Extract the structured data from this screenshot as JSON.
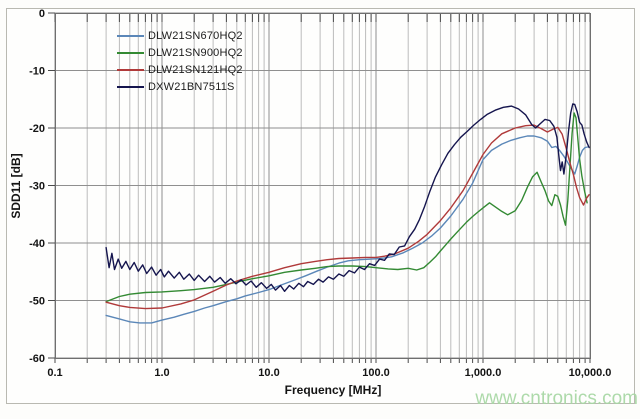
{
  "figure": {
    "watermark": "www.cntronics.com",
    "watermark_color": "#a7d7a3"
  },
  "chart_data": {
    "type": "line",
    "title": "",
    "xlabel": "Frequency [MHz]",
    "ylabel": "SDD11 [dB]",
    "x_scale": "log",
    "xlim": [
      0.1,
      10000
    ],
    "ylim": [
      -60,
      0
    ],
    "x_ticks": [
      "0.1",
      "1.0",
      "10.0",
      "100.0",
      "1,000.0",
      "10,000.0"
    ],
    "y_ticks": [
      "0",
      "-10",
      "-20",
      "-30",
      "-40",
      "-50",
      "-60"
    ],
    "grid": true,
    "legend_position": "upper-left-inside",
    "series": [
      {
        "name": "DLW21SN670HQ2",
        "color": "#5b87b8",
        "points": [
          [
            0.3,
            -52.6
          ],
          [
            0.4,
            -53.2
          ],
          [
            0.5,
            -53.7
          ],
          [
            0.62,
            -53.9
          ],
          [
            0.8,
            -53.9
          ],
          [
            1,
            -53.4
          ],
          [
            1.3,
            -52.9
          ],
          [
            1.6,
            -52.4
          ],
          [
            2,
            -51.9
          ],
          [
            2.5,
            -51.3
          ],
          [
            3,
            -50.9
          ],
          [
            4,
            -50.2
          ],
          [
            5,
            -49.7
          ],
          [
            6,
            -49.2
          ],
          [
            8,
            -48.6
          ],
          [
            10,
            -48.1
          ],
          [
            13,
            -47.3
          ],
          [
            17,
            -46.5
          ],
          [
            22,
            -45.7
          ],
          [
            28,
            -44.9
          ],
          [
            35,
            -44.2
          ],
          [
            45,
            -43.5
          ],
          [
            55,
            -43.1
          ],
          [
            70,
            -42.9
          ],
          [
            90,
            -42.8
          ],
          [
            110,
            -42.7
          ],
          [
            140,
            -42.4
          ],
          [
            180,
            -41.7
          ],
          [
            220,
            -40.9
          ],
          [
            270,
            -40.0
          ],
          [
            330,
            -38.8
          ],
          [
            400,
            -37.4
          ],
          [
            500,
            -35.3
          ],
          [
            650,
            -32.4
          ],
          [
            800,
            -29.6
          ],
          [
            1000,
            -25.5
          ],
          [
            1200,
            -23.9
          ],
          [
            1500,
            -22.8
          ],
          [
            1800,
            -22.2
          ],
          [
            2200,
            -21.7
          ],
          [
            2600,
            -21.4
          ],
          [
            3000,
            -21.4
          ],
          [
            3500,
            -21.7
          ],
          [
            4000,
            -22.3
          ],
          [
            4400,
            -23.4
          ],
          [
            4800,
            -23.2
          ],
          [
            5200,
            -23.9
          ],
          [
            5700,
            -24.9
          ],
          [
            6200,
            -26.0
          ],
          [
            6700,
            -27.1
          ],
          [
            7200,
            -28.0
          ],
          [
            7600,
            -26.6
          ],
          [
            8000,
            -25.1
          ],
          [
            8500,
            -23.9
          ],
          [
            9000,
            -23.4
          ],
          [
            9500,
            -23.3
          ]
        ]
      },
      {
        "name": "DLW21SN900HQ2",
        "color": "#338a33",
        "points": [
          [
            0.3,
            -50.2
          ],
          [
            0.4,
            -49.3
          ],
          [
            0.5,
            -48.9
          ],
          [
            0.7,
            -48.6
          ],
          [
            1,
            -48.5
          ],
          [
            1.5,
            -48.3
          ],
          [
            2,
            -48.1
          ],
          [
            3,
            -47.7
          ],
          [
            4,
            -47.2
          ],
          [
            5,
            -46.8
          ],
          [
            7,
            -46.2
          ],
          [
            10,
            -45.7
          ],
          [
            14,
            -45.1
          ],
          [
            20,
            -44.7
          ],
          [
            27,
            -44.4
          ],
          [
            35,
            -44.1
          ],
          [
            45,
            -44.0
          ],
          [
            60,
            -44.0
          ],
          [
            80,
            -44.1
          ],
          [
            100,
            -44.3
          ],
          [
            130,
            -44.5
          ],
          [
            160,
            -44.6
          ],
          [
            200,
            -44.4
          ],
          [
            240,
            -44.7
          ],
          [
            280,
            -44.3
          ],
          [
            320,
            -43.3
          ],
          [
            360,
            -42.4
          ],
          [
            400,
            -41.4
          ],
          [
            450,
            -40.3
          ],
          [
            500,
            -39.3
          ],
          [
            600,
            -37.7
          ],
          [
            700,
            -36.4
          ],
          [
            800,
            -35.4
          ],
          [
            900,
            -34.6
          ],
          [
            1000,
            -33.9
          ],
          [
            1150,
            -33.0
          ],
          [
            1300,
            -33.7
          ],
          [
            1500,
            -34.5
          ],
          [
            1700,
            -35.1
          ],
          [
            2000,
            -34.4
          ],
          [
            2300,
            -32.6
          ],
          [
            2600,
            -30.3
          ],
          [
            2900,
            -28.5
          ],
          [
            3200,
            -27.7
          ],
          [
            3500,
            -29.4
          ],
          [
            3800,
            -30.9
          ],
          [
            4100,
            -32.7
          ],
          [
            4400,
            -33.5
          ],
          [
            4700,
            -31.6
          ],
          [
            5000,
            -31.9
          ],
          [
            5300,
            -33.4
          ],
          [
            5600,
            -35.4
          ],
          [
            5900,
            -36.9
          ],
          [
            6200,
            -32.6
          ],
          [
            6500,
            -26.6
          ],
          [
            6800,
            -20.9
          ],
          [
            7100,
            -17.4
          ],
          [
            7400,
            -18.2
          ],
          [
            7700,
            -22.0
          ],
          [
            8000,
            -25.4
          ],
          [
            8400,
            -28.4
          ],
          [
            8900,
            -31.0
          ],
          [
            9400,
            -33.0
          ]
        ]
      },
      {
        "name": "DLW21SN121HQ2",
        "color": "#b03a3a",
        "points": [
          [
            0.3,
            -50.3
          ],
          [
            0.4,
            -50.9
          ],
          [
            0.5,
            -51.2
          ],
          [
            0.7,
            -51.4
          ],
          [
            1,
            -51.3
          ],
          [
            1.5,
            -50.6
          ],
          [
            2,
            -49.9
          ],
          [
            3,
            -48.4
          ],
          [
            4,
            -47.3
          ],
          [
            5,
            -46.6
          ],
          [
            7,
            -45.8
          ],
          [
            10,
            -45.1
          ],
          [
            14,
            -44.3
          ],
          [
            20,
            -43.6
          ],
          [
            27,
            -43.2
          ],
          [
            35,
            -42.9
          ],
          [
            45,
            -42.7
          ],
          [
            60,
            -42.6
          ],
          [
            80,
            -42.5
          ],
          [
            100,
            -42.5
          ],
          [
            120,
            -42.3
          ],
          [
            150,
            -41.9
          ],
          [
            200,
            -40.9
          ],
          [
            250,
            -39.7
          ],
          [
            300,
            -38.5
          ],
          [
            400,
            -36.1
          ],
          [
            500,
            -33.9
          ],
          [
            650,
            -30.9
          ],
          [
            800,
            -27.9
          ],
          [
            1000,
            -24.6
          ],
          [
            1200,
            -22.6
          ],
          [
            1500,
            -21.0
          ],
          [
            2000,
            -20.0
          ],
          [
            2500,
            -19.6
          ],
          [
            3000,
            -19.5
          ],
          [
            3500,
            -20.1
          ],
          [
            4000,
            -20.7
          ],
          [
            4500,
            -20.2
          ],
          [
            5000,
            -19.9
          ],
          [
            5500,
            -21.1
          ],
          [
            6000,
            -23.6
          ],
          [
            6500,
            -26.1
          ],
          [
            7000,
            -28.1
          ],
          [
            7500,
            -30.4
          ],
          [
            8000,
            -32.1
          ],
          [
            8700,
            -33.4
          ],
          [
            9300,
            -32.2
          ],
          [
            9800,
            -31.6
          ]
        ]
      },
      {
        "name": "DXW21BN7511S",
        "color": "#15154e",
        "points": [
          [
            0.3,
            -40.8
          ],
          [
            0.32,
            -44.3
          ],
          [
            0.34,
            -41.8
          ],
          [
            0.36,
            -44.6
          ],
          [
            0.39,
            -42.8
          ],
          [
            0.42,
            -44.4
          ],
          [
            0.46,
            -43.2
          ],
          [
            0.5,
            -44.6
          ],
          [
            0.55,
            -43.4
          ],
          [
            0.6,
            -44.9
          ],
          [
            0.66,
            -43.8
          ],
          [
            0.72,
            -45.3
          ],
          [
            0.8,
            -44.2
          ],
          [
            0.88,
            -45.6
          ],
          [
            0.97,
            -44.6
          ],
          [
            1.05,
            -45.9
          ],
          [
            1.15,
            -44.9
          ],
          [
            1.3,
            -46.1
          ],
          [
            1.45,
            -45.1
          ],
          [
            1.6,
            -46.3
          ],
          [
            1.8,
            -45.4
          ],
          [
            2.0,
            -46.5
          ],
          [
            2.2,
            -45.6
          ],
          [
            2.5,
            -46.7
          ],
          [
            2.8,
            -45.8
          ],
          [
            3.1,
            -46.8
          ],
          [
            3.5,
            -46.0
          ],
          [
            3.9,
            -47.0
          ],
          [
            4.4,
            -46.2
          ],
          [
            4.9,
            -47.1
          ],
          [
            5.5,
            -46.4
          ],
          [
            6.1,
            -47.3
          ],
          [
            6.8,
            -46.6
          ],
          [
            7.6,
            -47.7
          ],
          [
            8.5,
            -46.9
          ],
          [
            9.5,
            -47.9
          ],
          [
            10.5,
            -47.2
          ],
          [
            11.5,
            -48.2
          ],
          [
            12.8,
            -47.4
          ],
          [
            14,
            -48.4
          ],
          [
            15.5,
            -47.4
          ],
          [
            17,
            -48.0
          ],
          [
            19,
            -47.0
          ],
          [
            21,
            -47.6
          ],
          [
            23,
            -46.7
          ],
          [
            26,
            -47.2
          ],
          [
            29,
            -46.3
          ],
          [
            32,
            -46.8
          ],
          [
            36,
            -45.9
          ],
          [
            40,
            -46.3
          ],
          [
            45,
            -45.4
          ],
          [
            50,
            -45.8
          ],
          [
            56,
            -44.8
          ],
          [
            63,
            -45.2
          ],
          [
            70,
            -44.2
          ],
          [
            78,
            -44.6
          ],
          [
            87,
            -43.6
          ],
          [
            97,
            -43.9
          ],
          [
            108,
            -42.8
          ],
          [
            120,
            -43.0
          ],
          [
            133,
            -41.9
          ],
          [
            148,
            -42.0
          ],
          [
            165,
            -40.7
          ],
          [
            185,
            -40.5
          ],
          [
            205,
            -38.9
          ],
          [
            230,
            -37.6
          ],
          [
            255,
            -35.9
          ],
          [
            285,
            -33.6
          ],
          [
            320,
            -30.9
          ],
          [
            360,
            -28.5
          ],
          [
            410,
            -26.4
          ],
          [
            470,
            -24.4
          ],
          [
            540,
            -22.9
          ],
          [
            620,
            -21.6
          ],
          [
            710,
            -20.6
          ],
          [
            820,
            -19.5
          ],
          [
            950,
            -18.5
          ],
          [
            1100,
            -17.6
          ],
          [
            1300,
            -16.9
          ],
          [
            1550,
            -16.4
          ],
          [
            1850,
            -16.2
          ],
          [
            2150,
            -16.7
          ],
          [
            2500,
            -17.7
          ],
          [
            2850,
            -19.4
          ],
          [
            3100,
            -20.0
          ],
          [
            3400,
            -19.3
          ],
          [
            3800,
            -18.5
          ],
          [
            4200,
            -18.7
          ],
          [
            4600,
            -19.7
          ],
          [
            4900,
            -21.6
          ],
          [
            5100,
            -24.6
          ],
          [
            5300,
            -27.4
          ],
          [
            5500,
            -25.9
          ],
          [
            5700,
            -28.0
          ],
          [
            6000,
            -24.6
          ],
          [
            6300,
            -20.6
          ],
          [
            6600,
            -17.4
          ],
          [
            6900,
            -15.8
          ],
          [
            7200,
            -15.9
          ],
          [
            7600,
            -17.2
          ],
          [
            8000,
            -19.0
          ],
          [
            8400,
            -19.5
          ],
          [
            8800,
            -21.0
          ],
          [
            9300,
            -22.4
          ],
          [
            9800,
            -23.4
          ]
        ]
      }
    ]
  }
}
